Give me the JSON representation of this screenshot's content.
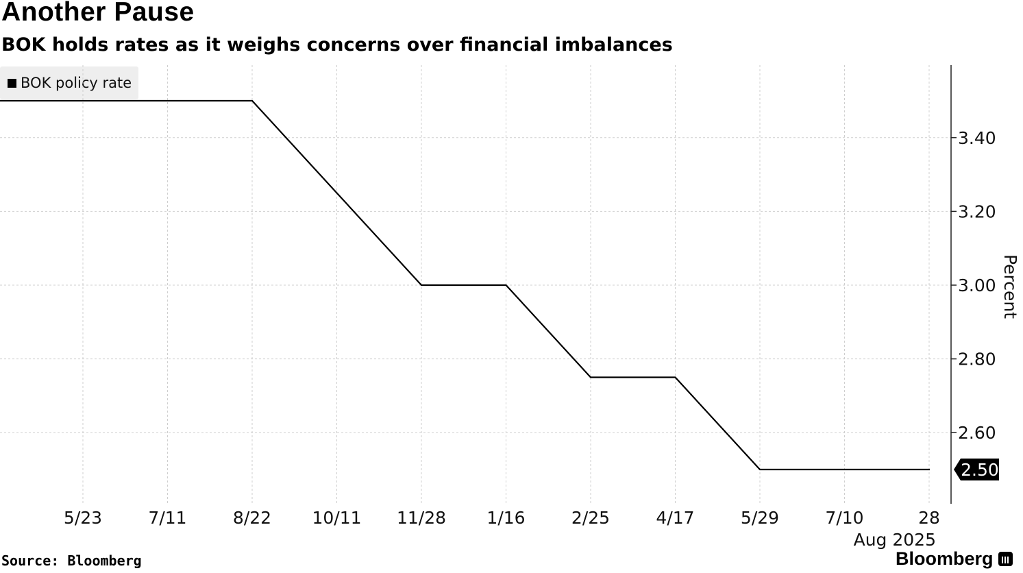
{
  "header": {
    "title": "Another Pause",
    "subtitle": "BOK holds rates as it weighs concerns over financial imbalances"
  },
  "footer": {
    "source": "Source: Bloomberg",
    "brand": "Bloomberg"
  },
  "chart_data": {
    "type": "line",
    "title": "Another Pause",
    "subtitle": "BOK holds rates as it weighs concerns over financial imbalances",
    "xlabel": "",
    "ylabel": "Percent",
    "ylim": [
      2.3,
      3.6
    ],
    "y_axis_side": "right",
    "grid": true,
    "legend_position": "top-left",
    "x_ticks": [
      "5/23",
      "7/11",
      "8/22",
      "10/11",
      "11/28",
      "1/16",
      "2/25",
      "4/17",
      "5/29",
      "7/10",
      "28"
    ],
    "x_tick_sublabel": "Aug 2025",
    "y_ticks": [
      "2.60",
      "2.80",
      "3.00",
      "3.20",
      "3.40"
    ],
    "last_value_label": "2.50",
    "series": [
      {
        "name": "BOK policy rate",
        "color": "#000000",
        "x": [
          "5/23",
          "7/11",
          "8/22",
          "10/11",
          "11/28",
          "1/16",
          "2/25",
          "4/17",
          "5/29",
          "7/10",
          "28"
        ],
        "values": [
          3.5,
          3.5,
          3.5,
          3.25,
          3.0,
          3.0,
          2.75,
          2.75,
          2.5,
          2.5,
          2.5
        ]
      }
    ]
  }
}
